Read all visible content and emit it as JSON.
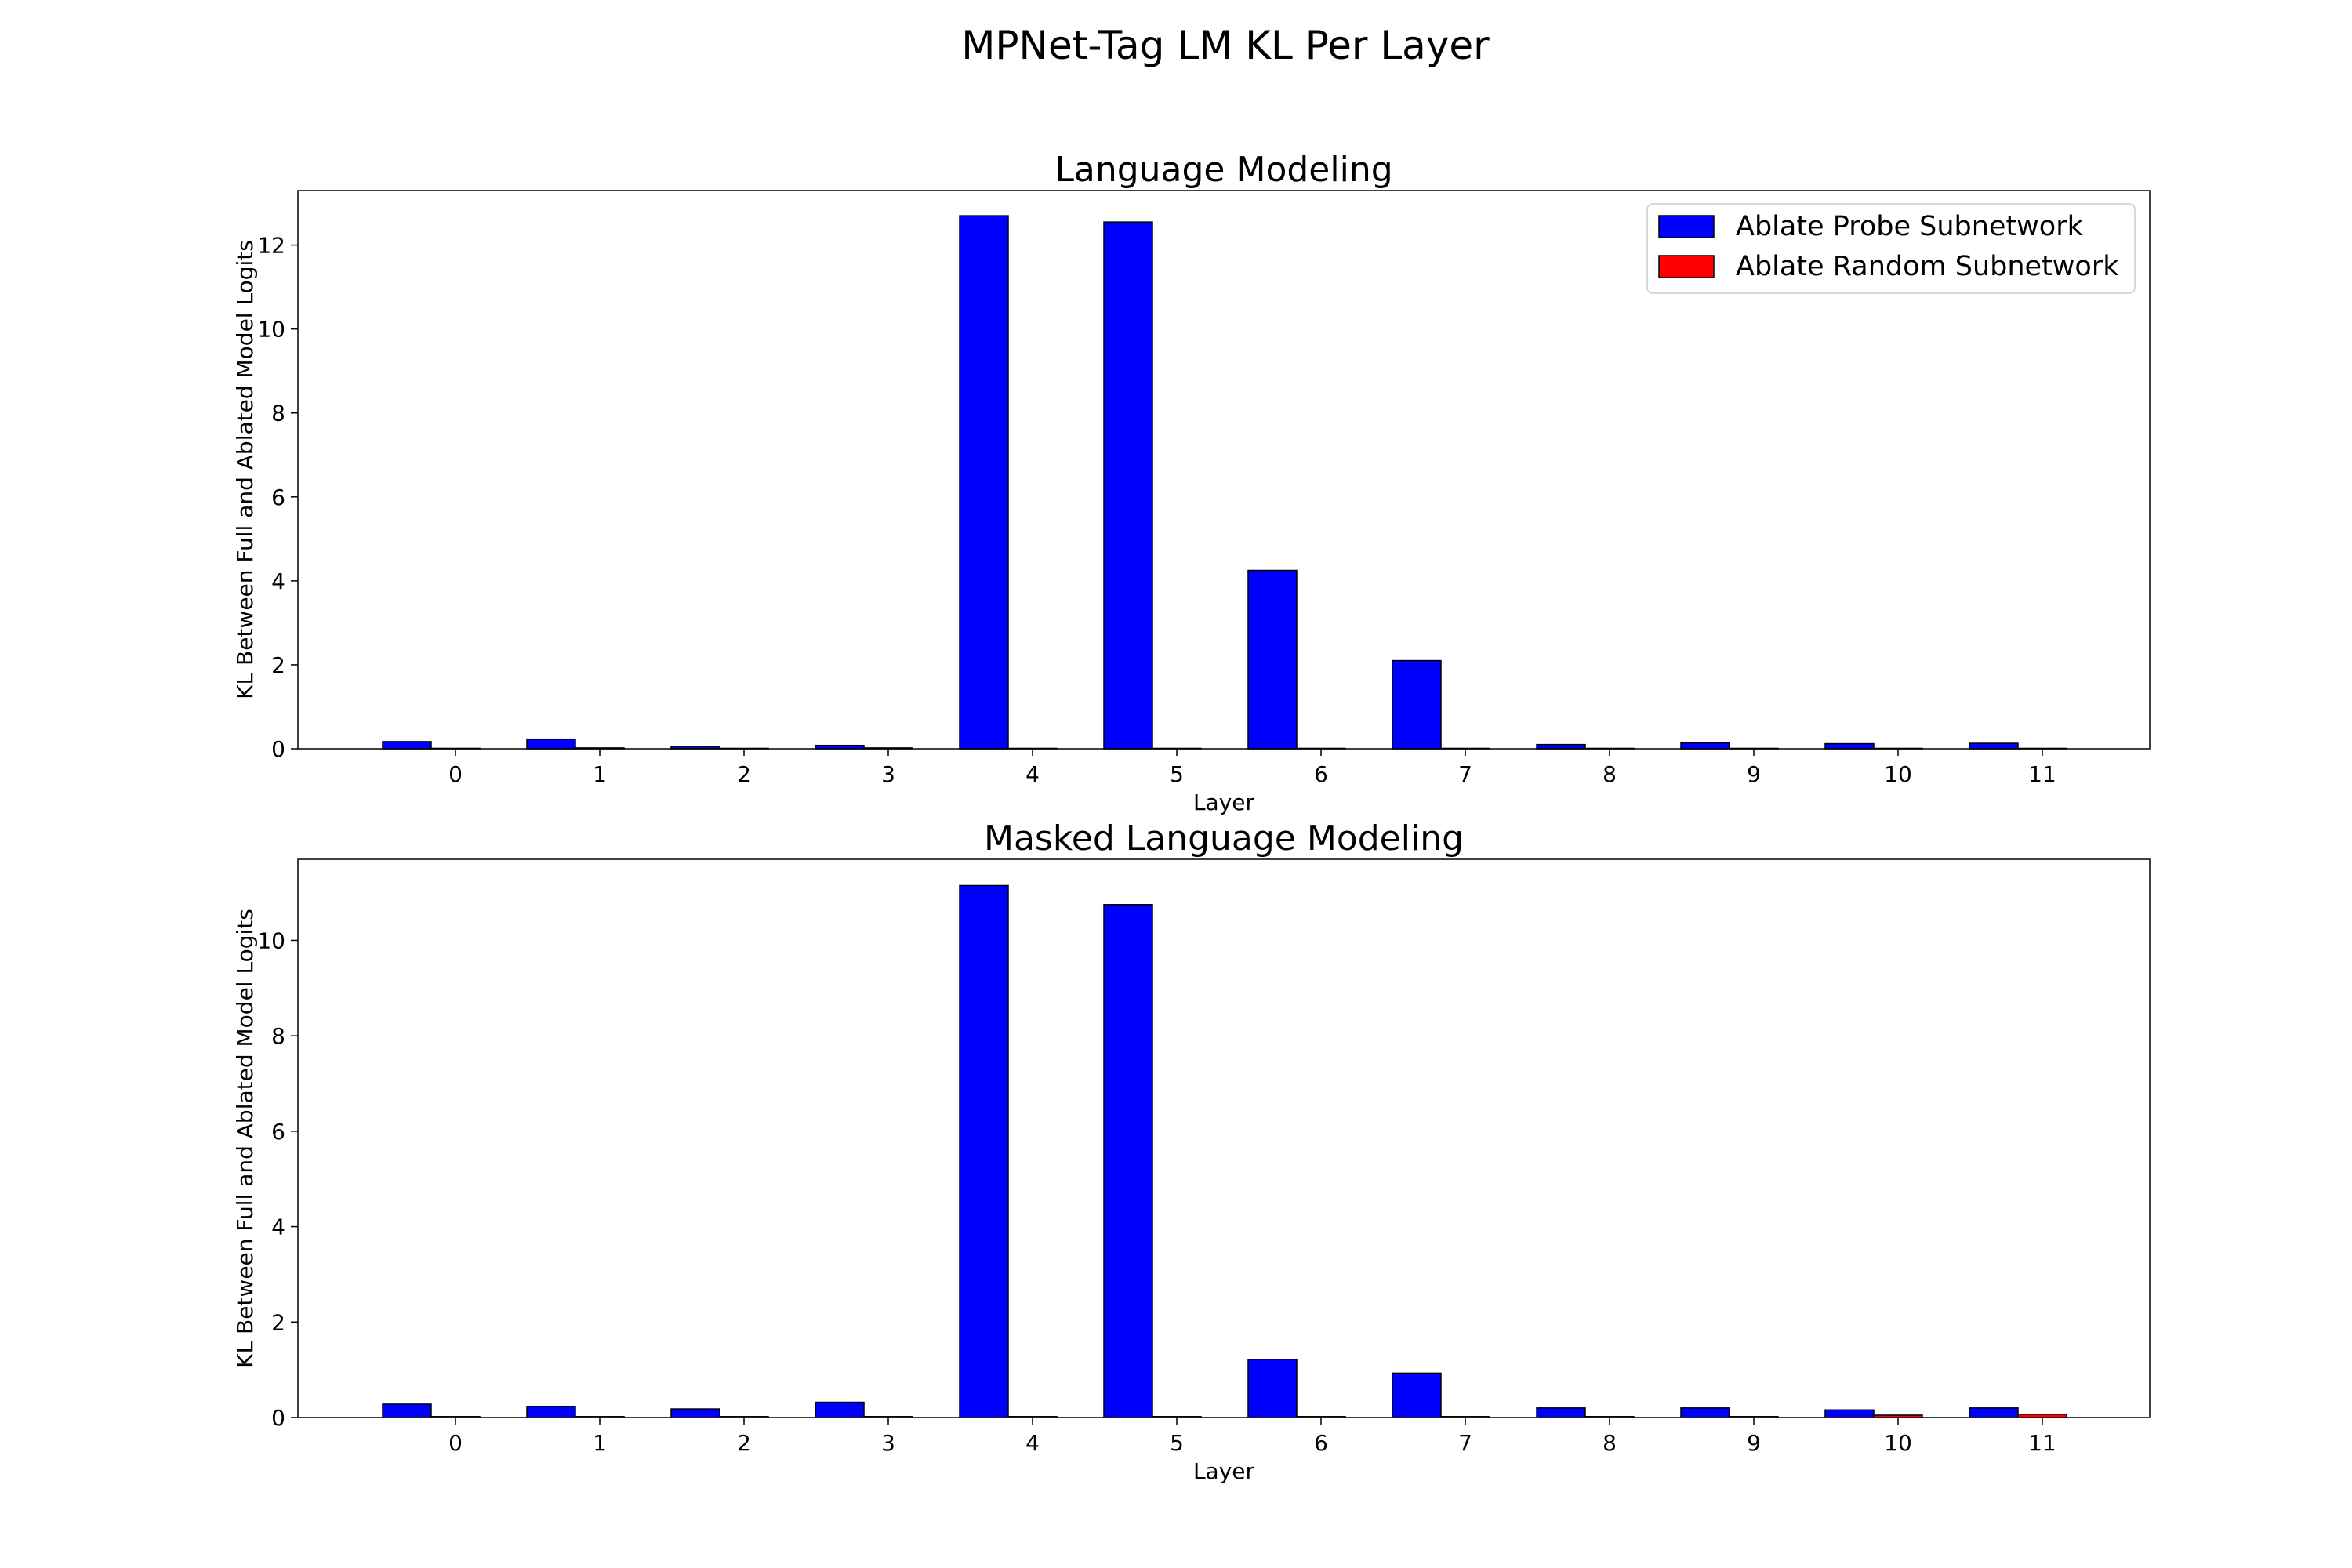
{
  "figure": {
    "suptitle": "MPNet-Tag LM KL Per Layer"
  },
  "legend": {
    "placement": "top-right",
    "entries": [
      {
        "label": "Ablate Probe Subnetwork",
        "color": "#0000ff"
      },
      {
        "label": "Ablate Random Subnetwork",
        "color": "#ff0000"
      }
    ]
  },
  "chart_data": [
    {
      "type": "bar",
      "title": "Language Modeling",
      "xlabel": "Layer",
      "ylabel": "KL Between Full and Ablated Model Logits",
      "categories": [
        "0",
        "1",
        "2",
        "3",
        "4",
        "5",
        "6",
        "7",
        "8",
        "9",
        "10",
        "11"
      ],
      "ylim": [
        0,
        13.3
      ],
      "yticks": [
        0,
        2,
        4,
        6,
        8,
        10,
        12
      ],
      "grid": false,
      "series": [
        {
          "name": "Ablate Probe Subnetwork",
          "color": "#0000ff",
          "values": [
            0.17,
            0.23,
            0.05,
            0.08,
            12.7,
            12.55,
            4.25,
            2.1,
            0.1,
            0.14,
            0.12,
            0.13
          ]
        },
        {
          "name": "Ablate Random Subnetwork",
          "color": "#ff0000",
          "values": [
            0.01,
            0.02,
            0.01,
            0.02,
            0.01,
            0.01,
            0.01,
            0.01,
            0.01,
            0.01,
            0.01,
            0.01
          ]
        }
      ]
    },
    {
      "type": "bar",
      "title": "Masked Language Modeling",
      "xlabel": "Layer",
      "ylabel": "KL Between Full and Ablated Model Logits",
      "categories": [
        "0",
        "1",
        "2",
        "3",
        "4",
        "5",
        "6",
        "7",
        "8",
        "9",
        "10",
        "11"
      ],
      "ylim": [
        0,
        11.7
      ],
      "yticks": [
        0,
        2,
        4,
        6,
        8,
        10
      ],
      "grid": false,
      "series": [
        {
          "name": "Ablate Probe Subnetwork",
          "color": "#0000ff",
          "values": [
            0.28,
            0.23,
            0.18,
            0.32,
            11.15,
            10.75,
            1.22,
            0.93,
            0.2,
            0.2,
            0.16,
            0.2
          ]
        },
        {
          "name": "Ablate Random Subnetwork",
          "color": "#ff0000",
          "values": [
            0.02,
            0.02,
            0.02,
            0.02,
            0.02,
            0.02,
            0.02,
            0.02,
            0.02,
            0.02,
            0.05,
            0.07
          ]
        }
      ]
    }
  ]
}
